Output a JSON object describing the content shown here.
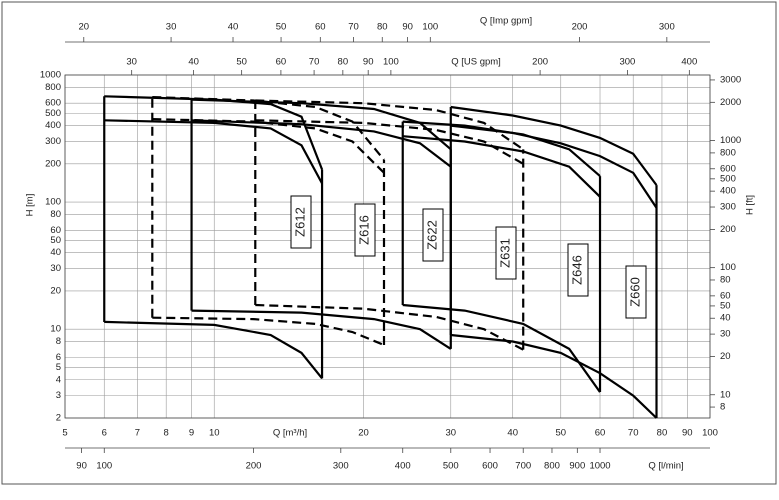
{
  "chart_data": {
    "type": "line",
    "log_scale": true,
    "grid": true,
    "xlabel": "Q [m³/h]",
    "xlim": [
      5,
      100
    ],
    "xticks": [
      5,
      6,
      7,
      8,
      9,
      10,
      20,
      30,
      40,
      50,
      60,
      70,
      80,
      90,
      100
    ],
    "ylabel": "H [m]",
    "ylim": [
      2,
      1000
    ],
    "yticks": [
      2,
      3,
      4,
      5,
      6,
      8,
      10,
      20,
      30,
      40,
      50,
      60,
      80,
      100,
      200,
      300,
      400,
      500,
      600,
      800,
      1000
    ],
    "y2label": "H [ft]",
    "y2lim": [
      6.562,
      3280.8
    ],
    "y2ticks": [
      8,
      10,
      20,
      30,
      40,
      50,
      60,
      80,
      100,
      200,
      300,
      400,
      500,
      600,
      800,
      1000,
      2000,
      3000
    ],
    "x2label": "Q [US gpm]",
    "x2lim": [
      22.01,
      440.3
    ],
    "x2ticks": [
      30,
      40,
      50,
      60,
      70,
      80,
      90,
      100,
      200,
      300,
      400
    ],
    "x3label": "Q [Imp gpm]",
    "x3lim": [
      18.33,
      366.6
    ],
    "x3ticks": [
      20,
      30,
      40,
      50,
      60,
      70,
      80,
      90,
      100,
      200,
      300
    ],
    "x4label": "Q [l/min]",
    "x4lim": [
      83.33,
      1666.67
    ],
    "x4ticks": [
      90,
      100,
      200,
      300,
      400,
      500,
      600,
      700,
      800,
      900,
      1000
    ],
    "series": [
      {
        "name": "Z612",
        "color": "#000000",
        "line_style": "solid",
        "x": [
          6,
          10,
          13,
          15,
          16.5
        ],
        "upper": [
          680,
          640,
          590,
          470,
          180
        ],
        "middle": [
          440,
          420,
          380,
          280,
          140
        ],
        "lower": [
          11.4,
          10.8,
          9,
          6.5,
          4.1
        ]
      },
      {
        "name": "Z616",
        "color": "#000000",
        "line_style": "dashed",
        "x": [
          7.5,
          12,
          16,
          19,
          22
        ],
        "upper": [
          670,
          630,
          560,
          430,
          215
        ],
        "middle": [
          450,
          430,
          380,
          300,
          170
        ],
        "lower": [
          12.3,
          12,
          11,
          9.5,
          7.5
        ]
      },
      {
        "name": "Z622",
        "color": "#000000",
        "line_style": "solid",
        "x": [
          9,
          15,
          21,
          26,
          30
        ],
        "upper": [
          640,
          600,
          540,
          420,
          260
        ],
        "middle": [
          440,
          410,
          360,
          290,
          190
        ],
        "lower": [
          14,
          13.5,
          12,
          10,
          7
        ]
      },
      {
        "name": "Z631",
        "color": "#000000",
        "line_style": "dashed",
        "x": [
          12.1,
          20,
          28,
          35,
          42
        ],
        "upper": [
          630,
          600,
          530,
          420,
          260
        ],
        "middle": [
          440,
          420,
          370,
          300,
          200
        ],
        "lower": [
          15.5,
          14.5,
          12.5,
          10,
          6.9
        ]
      },
      {
        "name": "Z646",
        "color": "#000000",
        "line_style": "solid",
        "x": [
          24,
          32,
          42,
          52,
          60
        ],
        "upper": [
          430,
          400,
          340,
          260,
          160
        ],
        "middle": [
          330,
          300,
          250,
          190,
          110
        ],
        "lower": [
          15.5,
          14,
          11,
          7,
          3.2
        ]
      },
      {
        "name": "Z660",
        "color": "#000000",
        "line_style": "solid",
        "x": [
          30,
          40,
          50,
          60,
          70,
          78
        ],
        "upper": [
          560,
          480,
          400,
          320,
          240,
          136
        ],
        "middle": [
          400,
          350,
          290,
          230,
          170,
          90
        ],
        "lower": [
          9,
          8,
          6.5,
          4.5,
          3,
          2
        ]
      }
    ]
  }
}
